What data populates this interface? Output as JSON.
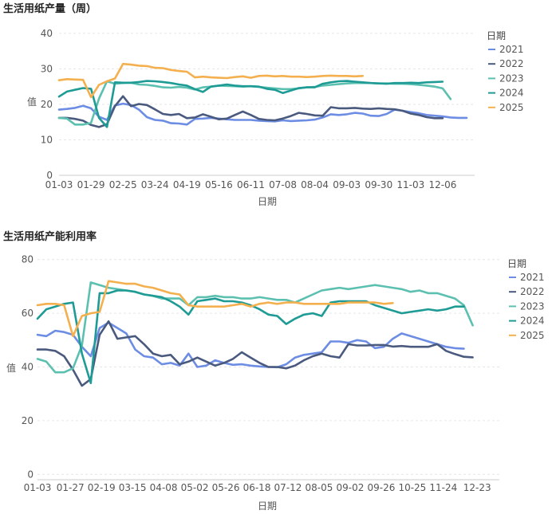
{
  "chart_data": [
    {
      "id": "production",
      "type": "line",
      "title": "生活用纸产量（周）",
      "xlabel": "日期",
      "ylabel": "值",
      "ylim": [
        0,
        42
      ],
      "yticks": [
        0,
        10,
        20,
        30,
        40
      ],
      "week_count": 53,
      "xtick_labels": [
        "01-03",
        "01-29",
        "02-25",
        "03-24",
        "04-19",
        "05-16",
        "06-11",
        "07-08",
        "08-04",
        "09-03",
        "09-30",
        "11-03",
        "12-06"
      ],
      "xtick_weeks": [
        0,
        4,
        8,
        12,
        16,
        20,
        24,
        28,
        32,
        36,
        40,
        44,
        48
      ],
      "legend_title": "日期",
      "series": [
        {
          "name": "2021",
          "color": "#6c8de3",
          "values": [
            18.5,
            18.7,
            19.0,
            19.6,
            18.9,
            16.5,
            15.6,
            19.7,
            20.2,
            19.8,
            18.5,
            16.4,
            15.6,
            15.4,
            14.7,
            14.6,
            14.3,
            15.9,
            16.0,
            16.2,
            16.0,
            15.8,
            15.6,
            15.6,
            15.6,
            15.4,
            15.3,
            15.2,
            15.5,
            15.3,
            15.4,
            15.5,
            15.7,
            16.3,
            17.2,
            17.0,
            17.2,
            17.6,
            17.4,
            16.8,
            16.7,
            17.3,
            18.5,
            18.2,
            17.8,
            17.5,
            17.0,
            16.8,
            16.6,
            16.3,
            16.2,
            16.2
          ]
        },
        {
          "name": "2022",
          "color": "#4a5a7e",
          "values": [
            16.2,
            16.2,
            15.9,
            15.4,
            14.2,
            13.6,
            14.4,
            19.5,
            22.3,
            19.5,
            20.1,
            19.8,
            18.6,
            17.3,
            17.0,
            17.3,
            16.1,
            16.3,
            17.2,
            16.5,
            15.8,
            16.0,
            17.0,
            18.0,
            17.0,
            15.9,
            15.6,
            15.5,
            16.0,
            16.7,
            17.6,
            17.3,
            16.9,
            16.8,
            19.2,
            18.9,
            18.9,
            19.0,
            18.8,
            18.7,
            18.9,
            18.7,
            18.6,
            18.2,
            17.4,
            17.0,
            16.4,
            16.1,
            16.1
          ]
        },
        {
          "name": "2023",
          "color": "#5cc0b0",
          "values": [
            16.2,
            16.0,
            14.3,
            14.3,
            14.8,
            21.6,
            26.5,
            25.8,
            26.0,
            26.1,
            25.6,
            25.5,
            25.2,
            24.8,
            24.7,
            24.9,
            24.7,
            24.2,
            24.8,
            25.0,
            25.3,
            25.2,
            25.1,
            25.0,
            25.1,
            24.9,
            24.7,
            24.5,
            24.3,
            24.3,
            24.5,
            24.8,
            24.9,
            25.3,
            25.5,
            25.7,
            25.9,
            26.0,
            26.0,
            26.0,
            25.9,
            25.9,
            25.8,
            25.8,
            25.7,
            25.5,
            25.3,
            25.0,
            24.5,
            21.5
          ]
        },
        {
          "name": "2024",
          "color": "#1e9b95",
          "values": [
            22.2,
            23.6,
            24.1,
            24.6,
            24.4,
            16.2,
            13.6,
            26.2,
            26.1,
            26.1,
            26.3,
            26.6,
            26.5,
            26.3,
            26.0,
            25.6,
            25.3,
            24.3,
            23.5,
            25.0,
            25.3,
            25.6,
            25.3,
            25.1,
            25.1,
            25.0,
            24.4,
            24.1,
            23.2,
            23.9,
            24.6,
            24.8,
            24.8,
            25.8,
            26.2,
            26.5,
            26.6,
            26.4,
            26.2,
            26.0,
            25.9,
            25.8,
            26.0,
            26.0,
            26.1,
            26.0,
            26.2,
            26.3,
            26.4
          ]
        },
        {
          "name": "2025",
          "color": "#f4b04f",
          "values": [
            26.8,
            27.1,
            27.0,
            26.9,
            22.0,
            25.5,
            26.5,
            27.3,
            31.4,
            31.2,
            30.9,
            30.8,
            30.3,
            30.2,
            29.7,
            29.4,
            29.2,
            27.6,
            27.8,
            27.6,
            27.5,
            27.4,
            27.7,
            27.9,
            27.5,
            28.0,
            28.1,
            27.9,
            28.0,
            27.8,
            27.8,
            27.7,
            27.8,
            28.0,
            28.1,
            28.0,
            28.0,
            27.9,
            28.0
          ]
        }
      ]
    },
    {
      "id": "utilization",
      "type": "line",
      "title": "生活用纸产能利用率",
      "xlabel": "日期",
      "ylabel": "值",
      "ylim": [
        -2,
        82
      ],
      "yticks": [
        0,
        20,
        40,
        60,
        80
      ],
      "week_count": 53,
      "xtick_labels": [
        "01-03",
        "01-27",
        "02-19",
        "03-15",
        "04-08",
        "05-02",
        "05-26",
        "06-18",
        "07-12",
        "08-05",
        "09-02",
        "09-26",
        "10-25",
        "11-24",
        "12-23"
      ],
      "xtick_weeks": [
        0,
        3.7,
        7.2,
        10.7,
        14.2,
        17.7,
        21.2,
        24.7,
        28.2,
        31.7,
        35.2,
        38.7,
        42.2,
        45.7,
        49.5
      ],
      "legend_title": "日期",
      "series": [
        {
          "name": "2021",
          "color": "#6c8de3",
          "values": [
            52,
            51.5,
            53.5,
            53,
            52,
            47.5,
            44,
            54.5,
            56.5,
            54.5,
            52.5,
            46.5,
            44,
            43.5,
            41,
            41.5,
            40.5,
            45,
            40,
            40.5,
            42.5,
            41.5,
            40.8,
            41,
            40.5,
            40.2,
            40,
            39.9,
            41,
            43.5,
            44.5,
            45,
            45.5,
            49.5,
            49.5,
            49,
            50,
            49.5,
            47,
            47.5,
            50.5,
            52.5,
            51.5,
            50.5,
            49.5,
            48.5,
            47.5,
            47,
            46.8
          ]
        },
        {
          "name": "2022",
          "color": "#4a5a7e",
          "values": [
            46.5,
            46.5,
            46,
            44,
            39,
            33,
            35.5,
            52,
            57,
            50.5,
            51,
            51.5,
            48.5,
            45,
            44,
            44.5,
            41,
            42,
            43.5,
            42,
            40.5,
            41.5,
            43,
            45.5,
            43.5,
            41.5,
            40,
            40,
            39.5,
            40.5,
            42.5,
            44,
            45,
            44,
            43.5,
            48.5,
            48,
            48,
            48.2,
            48.2,
            47.6,
            47.8,
            47.5,
            47.5,
            47.5,
            48.5,
            46,
            44.8,
            43.8,
            43.6
          ]
        },
        {
          "name": "2023",
          "color": "#5cc0b0",
          "values": [
            43,
            42,
            38,
            38,
            39.5,
            48,
            71.5,
            70.5,
            69.5,
            69,
            68.5,
            68,
            67,
            66.5,
            65.5,
            65.5,
            65.5,
            63,
            66,
            66,
            66.5,
            66,
            66,
            65.5,
            65.5,
            66,
            65.5,
            65,
            65,
            64,
            65.5,
            67,
            68.5,
            69,
            69.5,
            69,
            69.5,
            70,
            70.5,
            70,
            69.5,
            69,
            68,
            68.5,
            67.5,
            67.5,
            66.5,
            65.5,
            63,
            55.5
          ]
        },
        {
          "name": "2024",
          "color": "#1e9b95",
          "values": [
            58,
            61.5,
            62.5,
            63.5,
            64,
            45,
            34,
            67.5,
            67.5,
            68.5,
            68.5,
            68,
            67,
            66.5,
            66,
            64.5,
            62.5,
            59.5,
            64.5,
            65,
            65.5,
            64.5,
            64.5,
            64,
            63,
            61.5,
            59.5,
            59,
            56,
            58,
            59.5,
            60,
            59,
            64,
            64.5,
            64.5,
            64.5,
            64.5,
            63,
            62,
            61,
            60,
            60.5,
            61,
            61.5,
            61,
            61.5,
            62.5,
            62.5
          ]
        },
        {
          "name": "2025",
          "color": "#f4b04f",
          "values": [
            63,
            63.5,
            63.5,
            63,
            51.5,
            59,
            60,
            60.5,
            72,
            71.5,
            71,
            71,
            70,
            69.5,
            68.5,
            67.5,
            67,
            63,
            62.5,
            62.5,
            62.5,
            62.5,
            63,
            63.5,
            62.5,
            63.5,
            64,
            63.5,
            64,
            64,
            63.5,
            63.5,
            63.5,
            63.5,
            63.5,
            64,
            64,
            64,
            64,
            63.5,
            63.8
          ]
        }
      ]
    }
  ]
}
